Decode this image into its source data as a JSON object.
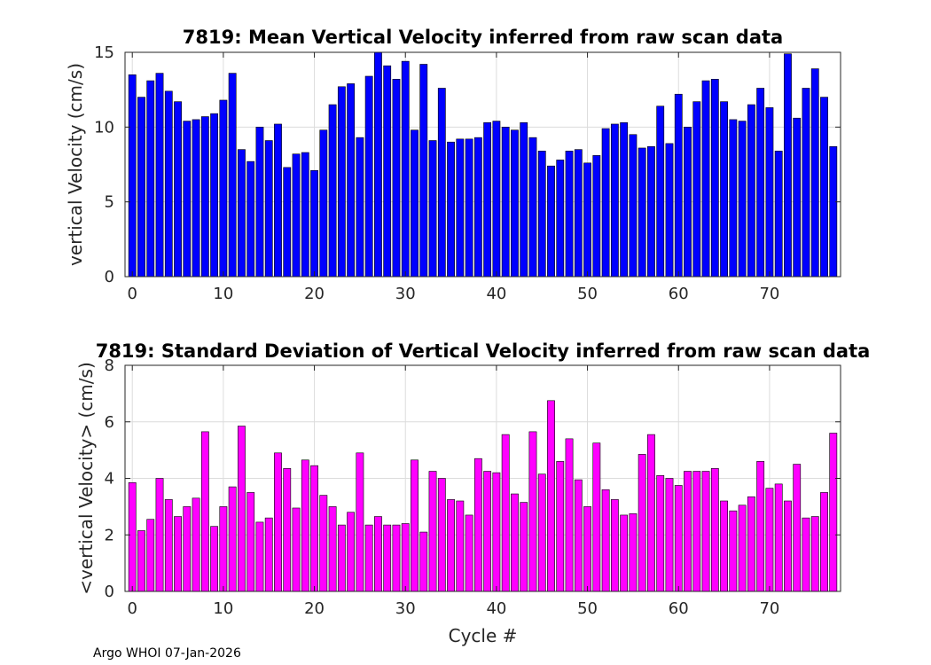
{
  "chart_data": [
    {
      "type": "bar",
      "title": "7819: Mean Vertical Velocity inferred from raw scan data",
      "xlabel": "",
      "ylabel": "vertical Velocity (cm/s)",
      "xlim": [
        -0.8,
        77.8
      ],
      "ylim": [
        0,
        15
      ],
      "xticks": [
        0,
        10,
        20,
        30,
        40,
        50,
        60,
        70
      ],
      "yticks": [
        0,
        5,
        10,
        15
      ],
      "grid": true,
      "color": "#0000ff",
      "x": [
        0,
        1,
        2,
        3,
        4,
        5,
        6,
        7,
        8,
        9,
        10,
        11,
        12,
        13,
        14,
        15,
        16,
        17,
        18,
        19,
        20,
        21,
        22,
        23,
        24,
        25,
        26,
        27,
        28,
        29,
        30,
        31,
        32,
        33,
        34,
        35,
        36,
        37,
        38,
        39,
        40,
        41,
        42,
        43,
        44,
        45,
        46,
        47,
        48,
        49,
        50,
        51,
        52,
        53,
        54,
        55,
        56,
        57,
        58,
        59,
        60,
        61,
        62,
        63,
        64,
        65,
        66,
        67,
        68,
        69,
        70,
        71,
        72,
        73,
        74,
        75,
        76,
        77
      ],
      "values": [
        13.5,
        12.0,
        13.1,
        13.6,
        12.4,
        11.7,
        10.4,
        10.5,
        10.7,
        10.9,
        11.8,
        13.6,
        8.5,
        7.7,
        10.0,
        9.1,
        10.2,
        7.3,
        8.2,
        8.3,
        7.1,
        9.8,
        11.5,
        12.7,
        12.9,
        9.3,
        13.4,
        15.0,
        14.1,
        13.2,
        14.4,
        9.8,
        14.2,
        9.1,
        12.6,
        9.0,
        9.2,
        9.2,
        9.3,
        10.3,
        10.4,
        10.0,
        9.8,
        10.3,
        9.3,
        8.4,
        7.4,
        7.8,
        8.4,
        8.5,
        7.6,
        8.1,
        9.9,
        10.2,
        10.3,
        9.5,
        8.6,
        8.7,
        11.4,
        8.9,
        12.2,
        10.0,
        11.7,
        13.1,
        13.2,
        11.7,
        10.5,
        10.4,
        11.5,
        12.6,
        11.3,
        8.4,
        14.9,
        10.6,
        12.6,
        13.9,
        12.0,
        8.7
      ]
    },
    {
      "type": "bar",
      "title": "7819: Standard Deviation of Vertical Velocity inferred from raw scan data",
      "xlabel": "Cycle #",
      "ylabel": "<vertical Velocity> (cm/s)",
      "xlim": [
        -0.8,
        77.8
      ],
      "ylim": [
        0,
        8
      ],
      "xticks": [
        0,
        10,
        20,
        30,
        40,
        50,
        60,
        70
      ],
      "yticks": [
        0,
        2,
        4,
        6,
        8
      ],
      "grid": true,
      "color": "#ff00ff",
      "x": [
        0,
        1,
        2,
        3,
        4,
        5,
        6,
        7,
        8,
        9,
        10,
        11,
        12,
        13,
        14,
        15,
        16,
        17,
        18,
        19,
        20,
        21,
        22,
        23,
        24,
        25,
        26,
        27,
        28,
        29,
        30,
        31,
        32,
        33,
        34,
        35,
        36,
        37,
        38,
        39,
        40,
        41,
        42,
        43,
        44,
        45,
        46,
        47,
        48,
        49,
        50,
        51,
        52,
        53,
        54,
        55,
        56,
        57,
        58,
        59,
        60,
        61,
        62,
        63,
        64,
        65,
        66,
        67,
        68,
        69,
        70,
        71,
        72,
        73,
        74,
        75,
        76,
        77
      ],
      "values": [
        3.85,
        2.15,
        2.55,
        4.0,
        3.25,
        2.65,
        3.0,
        3.3,
        5.65,
        2.3,
        3.0,
        3.7,
        5.85,
        3.5,
        2.45,
        2.6,
        4.9,
        4.35,
        2.95,
        4.65,
        4.45,
        3.4,
        3.0,
        2.35,
        2.8,
        4.9,
        2.35,
        2.65,
        2.35,
        2.35,
        2.4,
        4.65,
        2.1,
        4.25,
        4.0,
        3.25,
        3.2,
        2.7,
        4.7,
        4.25,
        4.2,
        5.55,
        3.45,
        3.15,
        5.65,
        4.15,
        6.75,
        4.6,
        5.4,
        3.95,
        3.0,
        5.25,
        3.6,
        3.25,
        2.7,
        2.75,
        4.85,
        5.55,
        4.1,
        4.0,
        3.75,
        4.25,
        4.25,
        4.25,
        4.35,
        3.2,
        2.85,
        3.05,
        3.35,
        4.6,
        3.65,
        3.8,
        3.2,
        4.5,
        2.6,
        2.65,
        3.5,
        5.6
      ]
    }
  ],
  "footer": {
    "text": "Argo WHOI 07-Jan-2026"
  }
}
